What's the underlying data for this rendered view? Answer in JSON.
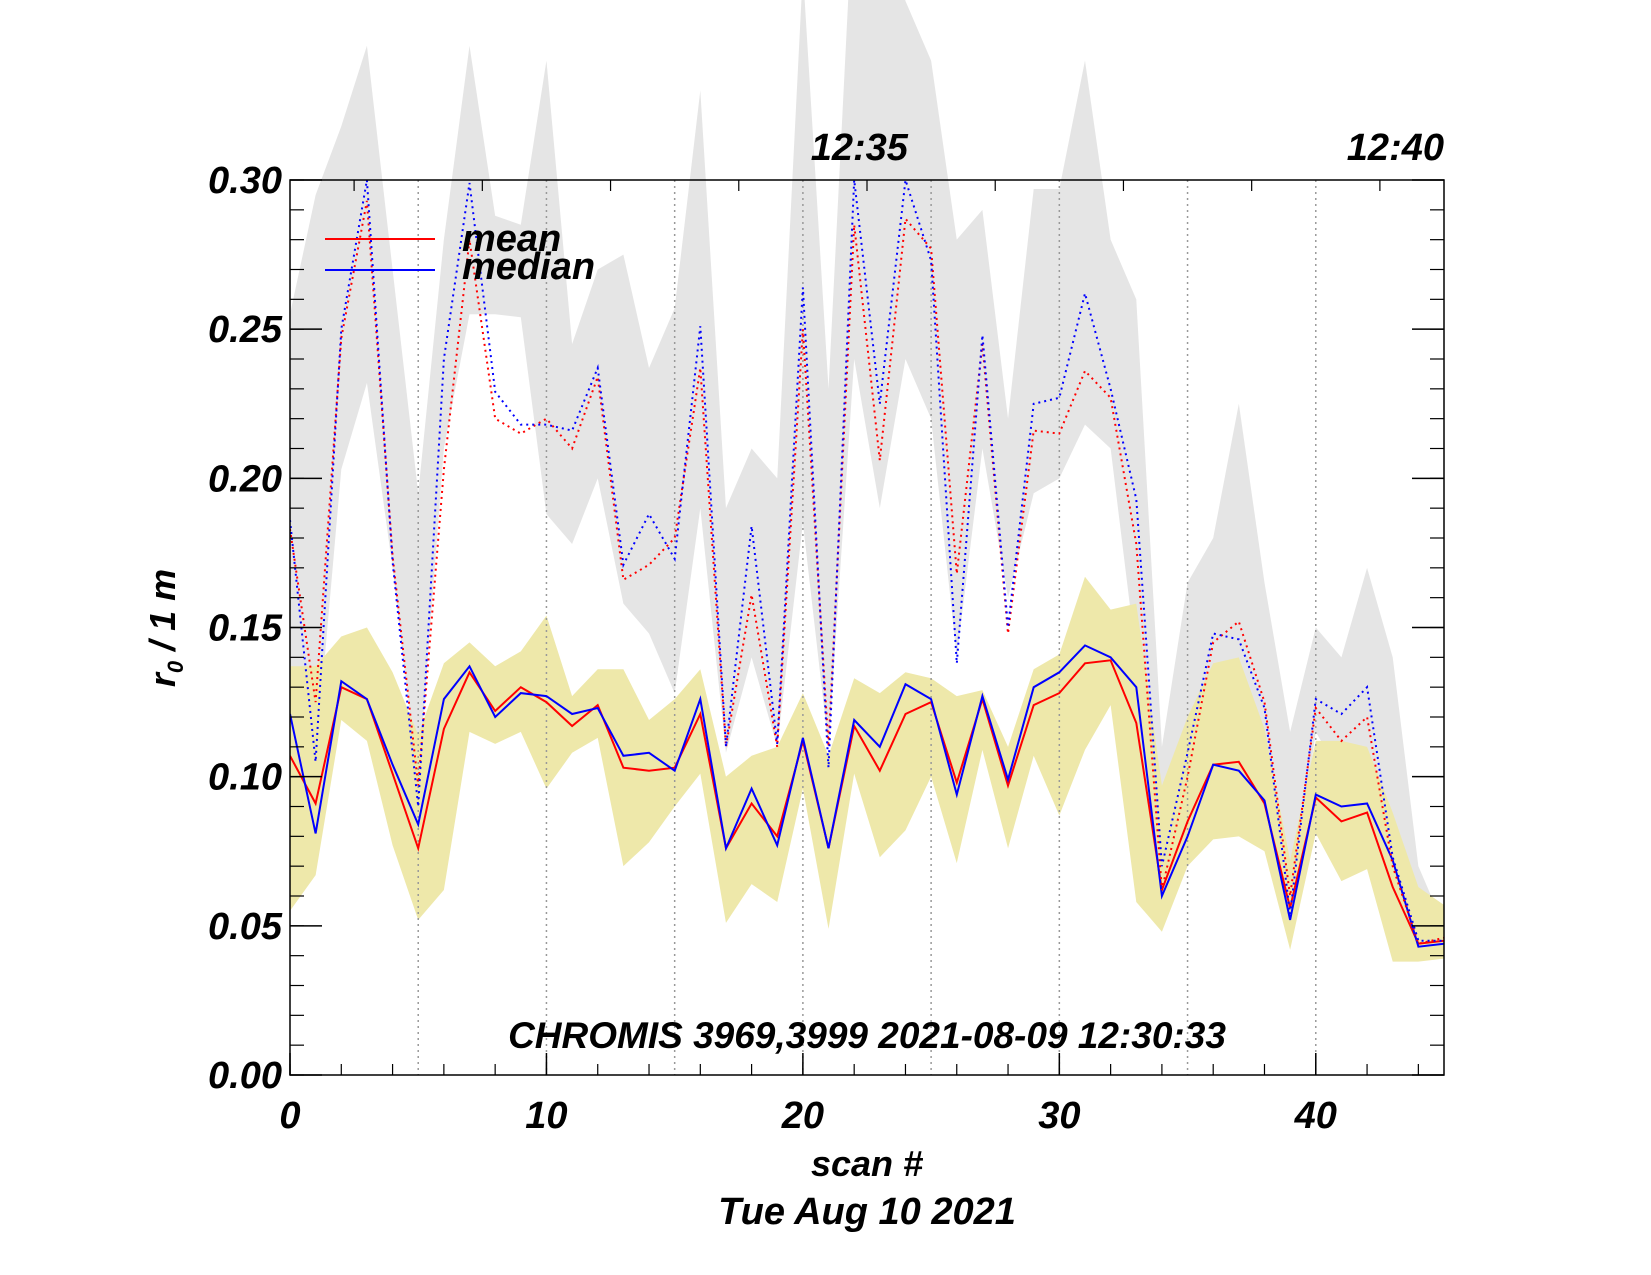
{
  "chart_data": {
    "type": "line",
    "title": "",
    "xlabel": "scan #",
    "date_label": "Tue Aug 10 2021",
    "ylabel_main": "r",
    "ylabel_sub": "0",
    "ylabel_rest": " / 1 m",
    "xlim": [
      0,
      45
    ],
    "ylim": [
      0,
      0.3
    ],
    "x_ticks": [
      0,
      10,
      20,
      30,
      40
    ],
    "x_tick_labels": [
      "0",
      "10",
      "20",
      "30",
      "40"
    ],
    "y_ticks": [
      0,
      0.05,
      0.1,
      0.15,
      0.2,
      0.25,
      0.3
    ],
    "y_tick_labels": [
      "0.00",
      "0.05",
      "0.10",
      "0.15",
      "0.20",
      "0.25",
      "0.30"
    ],
    "vgrid_x": [
      5,
      10,
      15,
      20,
      25,
      30,
      35,
      40
    ],
    "top_time_labels": [
      {
        "x": 22.2,
        "label": "12:35"
      },
      {
        "x": 45,
        "label": "12:40"
      }
    ],
    "annotation": "CHROMIS 3969,3999 2021-08-09 12:30:33",
    "legend": [
      {
        "name": "mean",
        "color": "#ff0000"
      },
      {
        "name": "median",
        "color": "#0000ff"
      }
    ],
    "legend_position": "top-left",
    "colors": {
      "mean": "#ff0000",
      "median": "#0000ff",
      "low_band": "#eee8aa",
      "high_band": "#e5e5e5"
    },
    "x": [
      0,
      1,
      2,
      3,
      4,
      5,
      6,
      7,
      8,
      9,
      10,
      11,
      12,
      13,
      14,
      15,
      16,
      17,
      18,
      19,
      20,
      21,
      22,
      23,
      24,
      25,
      26,
      27,
      28,
      29,
      30,
      31,
      32,
      33,
      34,
      35,
      36,
      37,
      38,
      39,
      40,
      41,
      42,
      43,
      44,
      45
    ],
    "series": [
      {
        "name": "mean",
        "style": "solid",
        "color": "#ff0000",
        "values": [
          0.107,
          0.091,
          0.13,
          0.126,
          0.101,
          0.076,
          0.116,
          0.135,
          0.122,
          0.13,
          0.125,
          0.117,
          0.124,
          0.103,
          0.102,
          0.103,
          0.121,
          0.076,
          0.091,
          0.08,
          0.112,
          0.076,
          0.117,
          0.102,
          0.121,
          0.125,
          0.098,
          0.126,
          0.097,
          0.124,
          0.128,
          0.138,
          0.139,
          0.118,
          0.062,
          0.085,
          0.104,
          0.105,
          0.091,
          0.056,
          0.093,
          0.085,
          0.088,
          0.063,
          0.044,
          0.045
        ]
      },
      {
        "name": "median",
        "style": "solid",
        "color": "#0000ff",
        "values": [
          0.121,
          0.081,
          0.132,
          0.126,
          0.104,
          0.084,
          0.126,
          0.137,
          0.12,
          0.128,
          0.127,
          0.121,
          0.123,
          0.107,
          0.108,
          0.102,
          0.126,
          0.076,
          0.096,
          0.077,
          0.113,
          0.076,
          0.119,
          0.11,
          0.131,
          0.126,
          0.094,
          0.127,
          0.099,
          0.13,
          0.135,
          0.144,
          0.14,
          0.13,
          0.06,
          0.08,
          0.104,
          0.102,
          0.092,
          0.052,
          0.094,
          0.09,
          0.091,
          0.072,
          0.043,
          0.044
        ]
      },
      {
        "name": "mean-high",
        "style": "dotted",
        "color": "#ff0000",
        "values": [
          0.183,
          0.125,
          0.247,
          0.293,
          0.174,
          0.097,
          0.203,
          0.28,
          0.22,
          0.215,
          0.22,
          0.21,
          0.234,
          0.166,
          0.171,
          0.18,
          0.237,
          0.11,
          0.161,
          0.11,
          0.25,
          0.11,
          0.285,
          0.206,
          0.287,
          0.277,
          0.168,
          0.245,
          0.148,
          0.216,
          0.215,
          0.236,
          0.227,
          0.178,
          0.062,
          0.1,
          0.145,
          0.152,
          0.125,
          0.06,
          0.123,
          0.112,
          0.12,
          0.07,
          0.044,
          0.046
        ]
      },
      {
        "name": "median-high",
        "style": "dotted",
        "color": "#0000ff",
        "values": [
          0.186,
          0.105,
          0.25,
          0.3,
          0.172,
          0.09,
          0.24,
          0.299,
          0.229,
          0.218,
          0.218,
          0.216,
          0.237,
          0.171,
          0.188,
          0.173,
          0.251,
          0.11,
          0.184,
          0.111,
          0.264,
          0.103,
          0.3,
          0.225,
          0.3,
          0.273,
          0.138,
          0.248,
          0.15,
          0.225,
          0.227,
          0.262,
          0.23,
          0.193,
          0.07,
          0.108,
          0.148,
          0.146,
          0.123,
          0.054,
          0.126,
          0.121,
          0.13,
          0.073,
          0.045,
          0.045
        ]
      }
    ],
    "bands": [
      {
        "name": "low-band",
        "color": "#eee8aa",
        "upper": [
          0.137,
          0.137,
          0.147,
          0.15,
          0.135,
          0.114,
          0.138,
          0.145,
          0.137,
          0.142,
          0.154,
          0.127,
          0.136,
          0.136,
          0.119,
          0.126,
          0.136,
          0.1,
          0.107,
          0.11,
          0.128,
          0.107,
          0.133,
          0.128,
          0.135,
          0.133,
          0.127,
          0.129,
          0.11,
          0.136,
          0.141,
          0.167,
          0.156,
          0.158,
          0.097,
          0.12,
          0.138,
          0.14,
          0.116,
          0.072,
          0.112,
          0.112,
          0.11,
          0.088,
          0.063,
          0.057
        ],
        "lower": [
          0.055,
          0.067,
          0.119,
          0.112,
          0.077,
          0.052,
          0.062,
          0.115,
          0.111,
          0.115,
          0.096,
          0.108,
          0.113,
          0.07,
          0.078,
          0.09,
          0.101,
          0.051,
          0.064,
          0.058,
          0.096,
          0.049,
          0.101,
          0.073,
          0.082,
          0.1,
          0.071,
          0.109,
          0.076,
          0.107,
          0.087,
          0.109,
          0.124,
          0.058,
          0.048,
          0.07,
          0.079,
          0.08,
          0.075,
          0.042,
          0.081,
          0.065,
          0.069,
          0.038,
          0.038,
          0.039
        ]
      },
      {
        "name": "high-band",
        "color": "#e5e5e5",
        "upper": [
          0.255,
          0.295,
          0.318,
          0.345,
          0.27,
          0.195,
          0.28,
          0.345,
          0.288,
          0.285,
          0.34,
          0.245,
          0.27,
          0.275,
          0.237,
          0.257,
          0.33,
          0.19,
          0.21,
          0.2,
          0.37,
          0.23,
          0.4,
          0.4,
          0.36,
          0.34,
          0.28,
          0.29,
          0.22,
          0.297,
          0.297,
          0.34,
          0.28,
          0.26,
          0.11,
          0.165,
          0.18,
          0.225,
          0.165,
          0.115,
          0.15,
          0.14,
          0.17,
          0.14,
          0.07,
          0.05
        ],
        "lower": [
          0.11,
          0.105,
          0.203,
          0.232,
          0.17,
          0.098,
          0.21,
          0.255,
          0.255,
          0.254,
          0.188,
          0.178,
          0.2,
          0.158,
          0.148,
          0.128,
          0.19,
          0.108,
          0.14,
          0.11,
          0.185,
          0.11,
          0.24,
          0.19,
          0.24,
          0.22,
          0.14,
          0.21,
          0.16,
          0.195,
          0.2,
          0.218,
          0.21,
          0.14,
          0.064,
          0.09,
          0.125,
          0.12,
          0.1,
          0.054,
          0.115,
          0.1,
          0.105,
          0.07,
          0.043,
          0.045
        ]
      }
    ]
  }
}
